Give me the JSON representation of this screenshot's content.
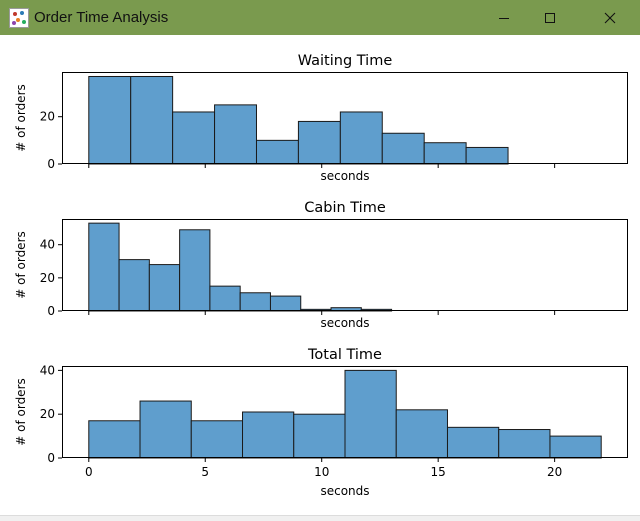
{
  "window": {
    "title": "Order Time Analysis",
    "icon": "chart-app-icon",
    "controls": [
      "minimize-icon",
      "maximize-icon",
      "close-icon"
    ]
  },
  "colors": {
    "titlebar": "#7a9a4e",
    "bar_fill": "#5f9ecd",
    "bar_edge": "#1a1a1a",
    "axes": "#000000"
  },
  "chart_data": [
    {
      "type": "bar",
      "title": "Waiting Time",
      "xlabel": "seconds",
      "ylabel": "# of orders",
      "xlim": [
        -1.15,
        23.15
      ],
      "ylim": [
        0,
        38.9
      ],
      "xticks": [
        0,
        5,
        10,
        15,
        20
      ],
      "show_xticklabels": false,
      "yticks": [
        0,
        20
      ],
      "bin_edges": [
        0,
        1.8,
        3.6,
        5.4,
        7.2,
        9.0,
        10.8,
        12.6,
        14.4,
        16.2,
        18.0
      ],
      "values": [
        37,
        37,
        22,
        25,
        10,
        18,
        22,
        13,
        9,
        7
      ],
      "grid": false,
      "legend": "none"
    },
    {
      "type": "bar",
      "title": "Cabin Time",
      "xlabel": "seconds",
      "ylabel": "# of orders",
      "xlim": [
        -1.15,
        23.15
      ],
      "ylim": [
        0,
        55.5
      ],
      "xticks": [
        0,
        5,
        10,
        15,
        20
      ],
      "show_xticklabels": false,
      "yticks": [
        0,
        20,
        40
      ],
      "bin_edges": [
        0,
        1.3,
        2.6,
        3.9,
        5.2,
        6.5,
        7.8,
        9.1,
        10.4,
        11.7,
        13.0
      ],
      "values": [
        53,
        31,
        28,
        49,
        15,
        11,
        9,
        1,
        2,
        1
      ],
      "grid": false,
      "legend": "none"
    },
    {
      "type": "bar",
      "title": "Total Time",
      "xlabel": "seconds",
      "ylabel": "# of orders",
      "xlim": [
        -1.15,
        23.15
      ],
      "ylim": [
        0,
        42
      ],
      "xticks": [
        0,
        5,
        10,
        15,
        20
      ],
      "show_xticklabels": true,
      "yticks": [
        0,
        20,
        40
      ],
      "bin_edges": [
        0,
        2.2,
        4.4,
        6.6,
        8.8,
        11.0,
        13.2,
        15.4,
        17.6,
        19.8,
        22.0
      ],
      "values": [
        17,
        26,
        17,
        21,
        20,
        40,
        22,
        14,
        13,
        10
      ],
      "grid": false,
      "legend": "none"
    }
  ]
}
